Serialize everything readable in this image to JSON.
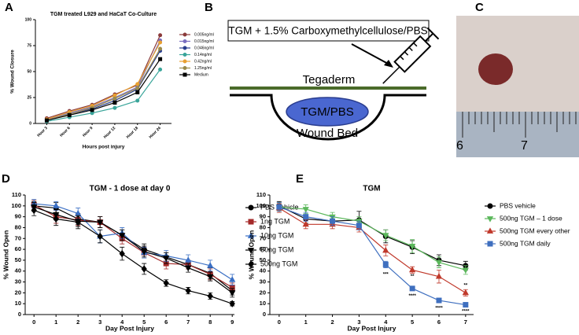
{
  "panel_labels": [
    "A",
    "B",
    "C",
    "D",
    "E"
  ],
  "diagram": {
    "label_box": "TGM + 1.5% Carboxymethylcellulose/PBS",
    "film": "Tegaderm",
    "gel": "TGM/PBS",
    "bed": "Wound Bed"
  },
  "photo": {
    "ruler_labels": [
      "6",
      "7"
    ]
  },
  "chart_data": [
    {
      "type": "line",
      "title": "TGM treated L929 and HaCaT Co-Culture",
      "x_label": "Hours post injury",
      "y_label": "% Wound Closure",
      "categories": [
        "Hour 3",
        "Hour 6",
        "Hour 9",
        "Hour 12",
        "Hour 18",
        "Hour 24"
      ],
      "ylim": [
        0,
        100
      ],
      "yticks": [
        0,
        25,
        50,
        75,
        100
      ],
      "series": [
        {
          "name": "0.005ng/ml",
          "color": "#8b3a3a",
          "marker": "circle",
          "values": [
            5,
            12,
            18,
            28,
            37,
            85
          ]
        },
        {
          "name": "0.015ng/ml",
          "color": "#7a6fc0",
          "marker": "circle",
          "values": [
            4,
            10,
            16,
            25,
            35,
            80
          ]
        },
        {
          "name": "0.046ng/ml",
          "color": "#2a3f8f",
          "marker": "circle",
          "values": [
            3,
            9,
            14,
            22,
            33,
            70
          ]
        },
        {
          "name": "0.14ng/ml",
          "color": "#3aa59a",
          "marker": "circle",
          "values": [
            2,
            6,
            10,
            15,
            22,
            52
          ]
        },
        {
          "name": "0.42ng/ml",
          "color": "#e8a030",
          "marker": "circle",
          "values": [
            4,
            11,
            17,
            27,
            38,
            78
          ]
        },
        {
          "name": "1.25ng/ml",
          "color": "#9a8a4a",
          "marker": "circle",
          "values": [
            3,
            9,
            15,
            24,
            34,
            72
          ]
        },
        {
          "name": "Medium",
          "color": "#000000",
          "marker": "square",
          "values": [
            3,
            8,
            13,
            20,
            30,
            62
          ]
        }
      ]
    },
    {
      "type": "line",
      "title": "TGM - 1 dose at day 0",
      "x_label": "Day Post Injury",
      "y_label": "% Wound Open",
      "x": [
        0,
        1,
        2,
        3,
        4,
        5,
        6,
        7,
        8,
        9
      ],
      "xlim": [
        -0.4,
        9.1
      ],
      "xticks": [
        0,
        1,
        2,
        3,
        4,
        5,
        6,
        7,
        8,
        9
      ],
      "ylim": [
        0,
        110
      ],
      "yticks": [
        0,
        10,
        20,
        30,
        40,
        50,
        60,
        70,
        80,
        90,
        100,
        110
      ],
      "series": [
        {
          "name": "PBS vehicle",
          "color": "#000000",
          "marker": "circle",
          "values": [
            100,
            98,
            88,
            85,
            73,
            60,
            53,
            46,
            38,
            22
          ],
          "errors": [
            4,
            5,
            5,
            5,
            5,
            5,
            4,
            4,
            5,
            4
          ]
        },
        {
          "name": "1ng TGM",
          "color": "#a52a2a",
          "marker": "square",
          "values": [
            101,
            90,
            87,
            85,
            70,
            57,
            47,
            46,
            37,
            25
          ],
          "errors": [
            4,
            6,
            5,
            5,
            5,
            5,
            5,
            4,
            5,
            4
          ]
        },
        {
          "name": "10ng TGM",
          "color": "#3a6fc4",
          "marker": "triangle-up",
          "values": [
            102,
            100,
            93,
            72,
            75,
            57,
            54,
            50,
            45,
            32
          ],
          "errors": [
            4,
            4,
            5,
            6,
            5,
            5,
            5,
            5,
            5,
            5
          ]
        },
        {
          "name": "50ng TGM",
          "color": "#000000",
          "marker": "triangle-down",
          "values": [
            99,
            92,
            86,
            85,
            73,
            58,
            52,
            43,
            35,
            20
          ],
          "errors": [
            4,
            5,
            5,
            5,
            5,
            5,
            5,
            4,
            4,
            4
          ]
        },
        {
          "name": "500ng TGM",
          "color": "#000000",
          "marker": "diamond",
          "values": [
            96,
            88,
            85,
            72,
            56,
            42,
            29,
            22,
            17,
            10
          ],
          "errors": [
            5,
            6,
            6,
            6,
            6,
            5,
            3,
            3,
            3,
            2
          ]
        }
      ]
    },
    {
      "type": "line",
      "title": "TGM",
      "x_label": "Day Post Injury",
      "y_label": "% Wound Open",
      "x": [
        0,
        1,
        2,
        3,
        4,
        5,
        6,
        7
      ],
      "xlim": [
        -0.35,
        7.3
      ],
      "xticks": [
        0,
        1,
        2,
        3,
        4,
        5,
        6,
        7
      ],
      "ylim": [
        0,
        110
      ],
      "yticks": [
        0,
        10,
        20,
        30,
        40,
        50,
        60,
        70,
        80,
        90,
        100,
        110
      ],
      "series": [
        {
          "name": "PBS vehicle",
          "color": "#000000",
          "marker": "circle",
          "values": [
            100,
            88,
            86,
            87,
            72,
            62,
            50,
            45
          ],
          "errors": [
            4,
            4,
            4,
            8,
            6,
            6,
            5,
            4
          ]
        },
        {
          "name": "500ng TGM – 1 dose",
          "color": "#5cb85c",
          "marker": "triangle-down",
          "values": [
            99,
            97,
            90,
            86,
            73,
            63,
            48,
            41
          ],
          "errors": [
            4,
            4,
            4,
            4,
            5,
            6,
            5,
            4
          ]
        },
        {
          "name": "500ng TGM every other",
          "color": "#c0392b",
          "marker": "triangle-up",
          "values": [
            98,
            83,
            83,
            80,
            59,
            41,
            35,
            20
          ],
          "errors": [
            4,
            4,
            4,
            4,
            5,
            3,
            6,
            3
          ]
        },
        {
          "name": "500ng TGM daily",
          "color": "#3f6fbf",
          "marker": "square",
          "values": [
            99,
            90,
            86,
            82,
            46,
            24,
            13,
            9
          ],
          "errors": [
            4,
            4,
            4,
            4,
            3,
            2,
            1,
            1
          ]
        }
      ],
      "annotations": [
        {
          "text": "***",
          "x": 4,
          "y": 37
        },
        {
          "text": "**",
          "x": 5,
          "y": 35
        },
        {
          "text": "****",
          "x": 5,
          "y": 17
        },
        {
          "text": "****",
          "x": 6,
          "y": 6
        },
        {
          "text": "**",
          "x": 7,
          "y": 27
        },
        {
          "text": "****",
          "x": 7,
          "y": 3
        }
      ]
    }
  ]
}
